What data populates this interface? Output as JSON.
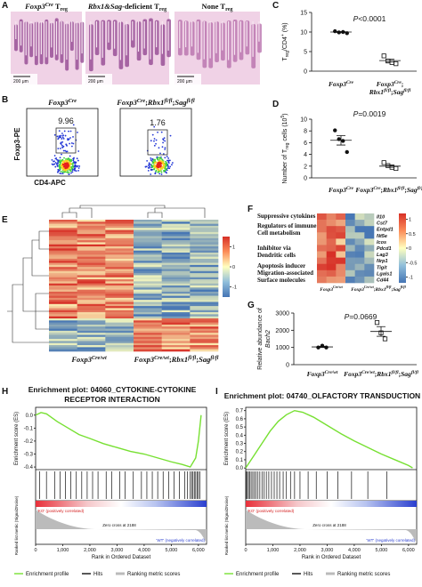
{
  "panel_labels": [
    "A",
    "B",
    "C",
    "D",
    "E",
    "F",
    "G",
    "H",
    "I"
  ],
  "panel_a": {
    "titles": [
      [
        {
          "t": "Foxp3",
          "s": "i"
        },
        {
          "t": "Cre",
          "s": "isup"
        },
        {
          "t": " T"
        },
        {
          "t": "reg",
          "s": "sub"
        }
      ],
      [
        {
          "t": "Rbx1&Sag",
          "s": "i"
        },
        {
          "t": "-deficient T"
        },
        {
          "t": "reg",
          "s": "sub"
        }
      ],
      [
        {
          "t": "None T"
        },
        {
          "t": "reg",
          "s": "sub"
        }
      ]
    ],
    "scale_bars": [
      "200 μm",
      "200 μm",
      "200 μm"
    ]
  },
  "panel_b": {
    "plots": [
      {
        "title": [
          {
            "t": "Foxp3",
            "s": "i"
          },
          {
            "t": "Cre",
            "s": "isup"
          }
        ],
        "gate_value": 9.96
      },
      {
        "title": [
          {
            "t": "Foxp3",
            "s": "i"
          },
          {
            "t": "Cre",
            "s": "isup"
          },
          {
            "t": ";"
          },
          {
            "t": "Rbx1",
            "s": "i"
          },
          {
            "t": "fl/fl",
            "s": "isup"
          },
          {
            "t": ";"
          },
          {
            "t": "Sag",
            "s": "i"
          },
          {
            "t": "fl/fl",
            "s": "isup"
          }
        ],
        "gate_value": 1.76
      }
    ],
    "y_label": "Foxp3-PE",
    "x_label": "CD4-APC"
  },
  "panel_c": {
    "type": "dot",
    "y_label": [
      [
        {
          "t": "T"
        },
        {
          "t": "reg",
          "s": "sub"
        },
        {
          "t": "/CD4"
        },
        {
          "t": "+",
          "s": "sup"
        },
        {
          "t": " (%)"
        }
      ]
    ],
    "p_value": [
      {
        "t": "P",
        "s": "i"
      },
      {
        "t": "<0.0001"
      }
    ],
    "categories": [
      [
        [
          {
            "t": "Foxp3",
            "s": "i"
          },
          {
            "t": "Cre",
            "s": "isup"
          }
        ]
      ],
      [
        [
          {
            "t": "Foxp3",
            "s": "i"
          },
          {
            "t": "Cre",
            "s": "isup"
          },
          {
            "t": ";"
          }
        ],
        [
          {
            "t": "Rbx1",
            "s": "i"
          },
          {
            "t": "fl/fl",
            "s": "isup"
          },
          {
            "t": ";"
          },
          {
            "t": "Sag",
            "s": "i"
          },
          {
            "t": "fl/fl",
            "s": "isup"
          }
        ]
      ]
    ],
    "markers": [
      "circle",
      "square"
    ],
    "groups": [
      [
        10.2,
        9.9,
        10.0,
        9.7
      ],
      [
        3.9,
        2.6,
        2.2,
        1.9
      ]
    ],
    "means": [
      10.0,
      2.7
    ],
    "sem": [
      0.1,
      0.4
    ],
    "ylim": [
      0,
      15
    ],
    "yticks": [
      0,
      5,
      10,
      15
    ]
  },
  "panel_d": {
    "type": "dot",
    "y_label": [
      [
        {
          "t": "Number of T"
        },
        {
          "t": "reg",
          "s": "sub"
        },
        {
          "t": " cells (10"
        },
        {
          "t": "5",
          "s": "sup"
        },
        {
          "t": ")"
        }
      ]
    ],
    "p_value": [
      {
        "t": "P",
        "s": "i"
      },
      {
        "t": "=0.0019"
      }
    ],
    "categories": [
      [
        [
          {
            "t": "Foxp3",
            "s": "i"
          },
          {
            "t": "Cre",
            "s": "isup"
          }
        ]
      ],
      [
        [
          {
            "t": "Foxp3",
            "s": "i"
          },
          {
            "t": "Cre",
            "s": "isup"
          },
          {
            "t": ";"
          },
          {
            "t": "Rbx1",
            "s": "i"
          },
          {
            "t": "fl/fl",
            "s": "isup"
          },
          {
            "t": ";"
          },
          {
            "t": "Sag",
            "s": "i"
          },
          {
            "t": "fl/fl",
            "s": "isup"
          }
        ]
      ]
    ],
    "markers": [
      "circle",
      "square"
    ],
    "groups": [
      [
        8.1,
        6.6,
        6.3,
        4.4
      ],
      [
        2.6,
        2.1,
        1.8,
        1.6
      ]
    ],
    "means": [
      6.4,
      2.0
    ],
    "sem": [
      0.8,
      0.2
    ],
    "ylim": [
      0,
      10
    ],
    "yticks": [
      0,
      2,
      4,
      6,
      8,
      10
    ]
  },
  "panel_e": {
    "colorbar_ticks": [
      1,
      0,
      -1
    ],
    "colorbar_lim": [
      -1.5,
      1.5
    ],
    "group_labels": [
      [
        {
          "t": "Foxp3",
          "s": "i"
        },
        {
          "t": "Cre/wt",
          "s": "isup"
        }
      ],
      [
        {
          "t": "Foxp3",
          "s": "i"
        },
        {
          "t": "Cre/wt",
          "s": "isup"
        },
        {
          "t": ";"
        },
        {
          "t": "Rbx1",
          "s": "i"
        },
        {
          "t": "fl/fl",
          "s": "isup"
        },
        {
          "t": ";"
        },
        {
          "t": "Sag",
          "s": "i"
        },
        {
          "t": "fl/fl",
          "s": "isup"
        }
      ]
    ]
  },
  "panel_f": {
    "categories": [
      [
        "Suppressive cytokines"
      ],
      [
        "Regulators of immune",
        "Cell metabolism"
      ],
      [
        "Inhibitor via",
        "Dendritic cells"
      ],
      [
        "Apoptosis inducer"
      ],
      [
        "Migration-associated",
        "Surface molecules"
      ]
    ],
    "genes": [
      "Il10",
      "Cst7",
      "Entpd1",
      "Nt5e",
      "Icos",
      "Pdcd1",
      "Lag3",
      "Nrp1",
      "Tigit",
      "Lgals1",
      "Cd44"
    ],
    "colorbar_ticks": [
      1,
      0.5,
      0,
      -0.5,
      -1
    ],
    "colorbar_lim": [
      -1.2,
      1.2
    ],
    "group_labels": [
      [
        {
          "t": "Foxp3",
          "s": "i"
        },
        {
          "t": "Cre/wt",
          "s": "isup"
        }
      ],
      [
        {
          "t": "Foxp3",
          "s": "i"
        },
        {
          "t": "Cre/wt",
          "s": "isup"
        },
        {
          "t": ";"
        },
        {
          "t": "Rbx1",
          "s": "i"
        },
        {
          "t": "fl/fl",
          "s": "isup"
        },
        {
          "t": ";"
        },
        {
          "t": "Sag",
          "s": "i"
        },
        {
          "t": "fl/fl",
          "s": "isup"
        }
      ]
    ]
  },
  "panel_g": {
    "type": "dot",
    "y_label": [
      [
        {
          "t": "Relative abundance of"
        }
      ],
      [
        {
          "t": "Bach2",
          "s": "i"
        }
      ]
    ],
    "p_value": [
      {
        "t": "P",
        "s": "i"
      },
      {
        "t": "=0.0669"
      }
    ],
    "categories": [
      [
        [
          {
            "t": "Foxp3",
            "s": "i"
          },
          {
            "t": "Cre/wt",
            "s": "isup"
          }
        ]
      ],
      [
        [
          {
            "t": "Foxp3",
            "s": "i"
          },
          {
            "t": "Cre/wt",
            "s": "isup"
          },
          {
            "t": ";"
          },
          {
            "t": "Rbx1",
            "s": "i"
          },
          {
            "t": "fl/fl",
            "s": "isup"
          },
          {
            "t": ";"
          },
          {
            "t": "Sag",
            "s": "i"
          },
          {
            "t": "fl/fl",
            "s": "isup"
          }
        ]
      ]
    ],
    "markers": [
      "circle",
      "square"
    ],
    "groups": [
      [
        1000,
        1100,
        1000
      ],
      [
        2450,
        1850,
        1500
      ]
    ],
    "means": [
      1030,
      1930
    ],
    "sem": [
      35,
      280
    ],
    "ylim": [
      0,
      3000
    ],
    "yticks": [
      0,
      1000,
      2000,
      3000
    ]
  },
  "panel_h": {
    "type": "gsea",
    "title_lines": [
      "Enrichment plot: 04060_CYTOKINE-CYTOKINE",
      "RECEPTOR INTERACTION"
    ],
    "y_label": "Enrichment score (ES)",
    "y2_label": "Ranked list metric (Signal2Noise)",
    "x_label": "Rank in Ordered Dataset",
    "pos_label": "'KO' (positively correlated)",
    "zero_cross": "Zero cross at 2188",
    "neg_label": "'WT' (negatively correlated)",
    "legend": [
      "Enrichment profile",
      "Hits",
      "Ranking metric scores"
    ],
    "color": "#77e032",
    "x": [
      0,
      200,
      400,
      800,
      1200,
      1600,
      2000,
      2500,
      3000,
      3500,
      4000,
      4500,
      5000,
      5400,
      5700,
      5900,
      6000,
      6100
    ],
    "values": [
      0,
      0.02,
      0.01,
      -0.05,
      -0.1,
      -0.15,
      -0.18,
      -0.22,
      -0.25,
      -0.28,
      -0.3,
      -0.33,
      -0.36,
      -0.38,
      -0.4,
      -0.33,
      -0.2,
      0
    ],
    "hits": [
      150,
      400,
      700,
      900,
      1100,
      1300,
      1500,
      1700,
      1900,
      2100,
      2300,
      2600,
      2800,
      3100,
      3300,
      3600,
      3900,
      4100,
      4300,
      4500,
      4700,
      4900,
      5100,
      5300,
      5500,
      5600,
      5700,
      5750,
      5800,
      5850,
      5900,
      5950,
      6000,
      6050
    ],
    "xlim": [
      0,
      6300
    ],
    "xticks": [
      0,
      {
        "value": 1000,
        "label": "1,000"
      },
      {
        "value": 2000,
        "label": "2,000"
      },
      {
        "value": 3000,
        "label": "3,000"
      },
      {
        "value": 4000,
        "label": "4,000"
      },
      {
        "value": 5000,
        "label": "5,000"
      },
      {
        "value": 6000,
        "label": "6,000"
      }
    ],
    "ylim": [
      -0.42,
      0.06
    ],
    "yticks": [
      {
        "value": 0,
        "label": "0.0"
      },
      -0.1,
      -0.2,
      -0.3,
      -0.4
    ]
  },
  "panel_i": {
    "type": "gsea",
    "title_lines": [
      "Enrichment plot: 04740_OLFACTORY TRANSDUCTION"
    ],
    "y_label": "Enrichment score (ES)",
    "y2_label": "Ranked list metric (Signal2Noise)",
    "x_label": "Rank in Ordered Dataset",
    "pos_label": "'KO' (positively correlated)",
    "zero_cross": "Zero cross at 2188",
    "neg_label": "'WT' (negatively correlated)",
    "legend": [
      "Enrichment profile",
      "Hits",
      "Ranking metric scores"
    ],
    "color": "#77e032",
    "x": [
      0,
      300,
      600,
      900,
      1200,
      1500,
      1800,
      2100,
      2500,
      3000,
      3500,
      4000,
      4500,
      5000,
      5500,
      6000,
      6150
    ],
    "values": [
      0,
      0.15,
      0.3,
      0.45,
      0.57,
      0.65,
      0.7,
      0.68,
      0.62,
      0.52,
      0.42,
      0.33,
      0.25,
      0.17,
      0.1,
      0.03,
      0
    ],
    "hits": [
      20,
      60,
      100,
      150,
      200,
      260,
      320,
      380,
      450,
      520,
      600,
      680,
      760,
      850,
      950,
      1050,
      1150,
      1250,
      1380,
      1500,
      1650,
      1800,
      2000,
      2300,
      2600,
      3000,
      3400,
      3900,
      4500,
      5200
    ],
    "xlim": [
      0,
      6300
    ],
    "xticks": [
      0,
      {
        "value": 1000,
        "label": "1,000"
      },
      {
        "value": 2000,
        "label": "2,000"
      },
      {
        "value": 3000,
        "label": "3,000"
      },
      {
        "value": 4000,
        "label": "4,000"
      },
      {
        "value": 5000,
        "label": "5,000"
      },
      {
        "value": 6000,
        "label": "6,000"
      }
    ],
    "ylim": [
      -0.02,
      0.74
    ],
    "yticks": [
      {
        "value": 0,
        "label": "0.0"
      },
      0.1,
      0.2,
      0.3,
      0.4,
      0.5,
      0.6,
      0.7
    ]
  }
}
